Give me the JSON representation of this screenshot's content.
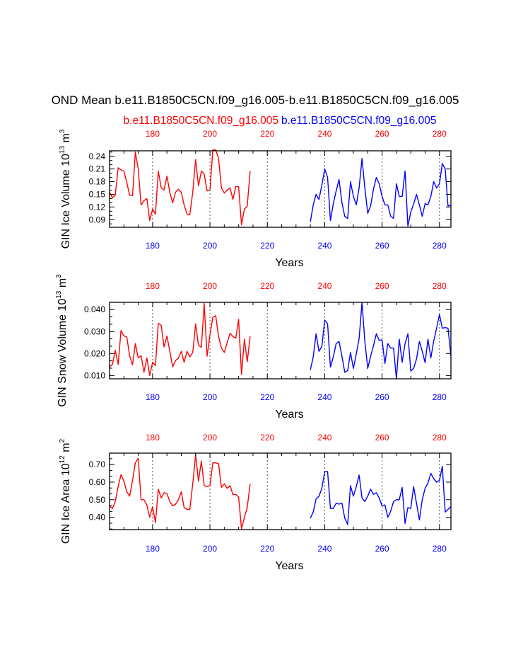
{
  "chart_data": {
    "type": "line",
    "title": "OND Mean b.e11.B1850C5CN.f09_g16.005-b.e11.B1850C5CN.f09_g16.005",
    "legend": [
      {
        "label": "b.e11.B1850C5CN.f09_g16.005",
        "color": "#ff0000"
      },
      {
        "label": "b.e11.B1850C5CN.f09_g16.005",
        "color": "#0000ff"
      }
    ],
    "colors": {
      "series_a": "#ff0000",
      "series_b": "#0000ff",
      "frame": "#000000",
      "refline": "#555555"
    },
    "xlim": [
      165,
      284
    ],
    "x_ticks": [
      180,
      200,
      220,
      240,
      260,
      280
    ],
    "x_tick_labels": [
      "180",
      "200",
      "220",
      "240",
      "260",
      "280"
    ],
    "x_tick_colors": [
      "#ff0000",
      "#ff0000",
      "#ff0000",
      "#ff0000",
      "#ff0000",
      "#ff0000"
    ],
    "x_tick_colors_bottom": [
      "#0000ff",
      "#0000ff",
      "#0000ff",
      "#0000ff",
      "#0000ff",
      "#0000ff"
    ],
    "reference_lines_x": [
      180,
      200,
      220,
      240,
      260,
      280
    ],
    "panels": [
      {
        "name": "ice-volume",
        "ylabel": "GIN Ice Volume 10",
        "ylabel_exp": "13",
        "ylabel_unit": " m",
        "ylabel_unit_exp": "3",
        "xlabel": "Years",
        "ylim": [
          0.072,
          0.253
        ],
        "y_ticks": [
          0.09,
          0.12,
          0.15,
          0.18,
          0.21,
          0.24
        ],
        "y_tick_labels": [
          "0.09",
          "0.12",
          "0.15",
          "0.18",
          "0.21",
          "0.24"
        ],
        "series": [
          {
            "name": "b.e11.B1850C5CN.f09_g16.005",
            "color": "#ff0000",
            "x_start": 165,
            "values": [
              0.155,
              0.142,
              0.148,
              0.213,
              0.208,
              0.205,
              0.178,
              0.148,
              0.147,
              0.25,
              0.21,
              0.125,
              0.135,
              0.14,
              0.088,
              0.115,
              0.103,
              0.205,
              0.165,
              0.16,
              0.193,
              0.155,
              0.13,
              0.155,
              0.162,
              0.155,
              0.125,
              0.103,
              0.102,
              0.155,
              0.232,
              0.17,
              0.205,
              0.198,
              0.158,
              0.16,
              0.255,
              0.255,
              0.235,
              0.165,
              0.153,
              0.16,
              0.165,
              0.138,
              0.168,
              0.168,
              0.078,
              0.115,
              0.122,
              0.205
            ]
          },
          {
            "name": "b.e11.B1850C5CN.f09_g16.005",
            "color": "#0000ff",
            "x_start": 235,
            "values": [
              0.085,
              0.125,
              0.15,
              0.138,
              0.172,
              0.21,
              0.19,
              0.088,
              0.128,
              0.158,
              0.185,
              0.13,
              0.098,
              0.093,
              0.18,
              0.145,
              0.125,
              0.165,
              0.235,
              0.165,
              0.105,
              0.123,
              0.162,
              0.19,
              0.175,
              0.145,
              0.125,
              0.125,
              0.098,
              0.093,
              0.175,
              0.145,
              0.145,
              0.205,
              0.075,
              0.108,
              0.127,
              0.15,
              0.125,
              0.098,
              0.128,
              0.125,
              0.145,
              0.18,
              0.165,
              0.175,
              0.223,
              0.21,
              0.122,
              0.125
            ]
          }
        ]
      },
      {
        "name": "snow-volume",
        "ylabel": "GIN Snow Volume 10",
        "ylabel_exp": "13",
        "ylabel_unit": " m",
        "ylabel_unit_exp": "3",
        "xlabel": "Years",
        "ylim": [
          0.0085,
          0.0433
        ],
        "y_ticks": [
          0.01,
          0.02,
          0.03,
          0.04
        ],
        "y_tick_labels": [
          "0.010",
          "0.020",
          "0.030",
          "0.040"
        ],
        "series": [
          {
            "name": "b.e11.B1850C5CN.f09_g16.005",
            "color": "#ff0000",
            "x_start": 165,
            "values": [
              0.014,
              0.015,
              0.0215,
              0.015,
              0.0305,
              0.028,
              0.0275,
              0.019,
              0.0148,
              0.0245,
              0.018,
              0.019,
              0.0115,
              0.018,
              0.01,
              0.016,
              0.0145,
              0.0338,
              0.0328,
              0.023,
              0.028,
              0.021,
              0.014,
              0.0168,
              0.0178,
              0.021,
              0.016,
              0.021,
              0.0185,
              0.0205,
              0.0335,
              0.0238,
              0.0228,
              0.0428,
              0.0188,
              0.0285,
              0.0365,
              0.0372,
              0.0278,
              0.0225,
              0.0205,
              0.025,
              0.0292,
              0.0278,
              0.027,
              0.0355,
              0.0105,
              0.0265,
              0.0162,
              0.0278
            ]
          },
          {
            "name": "b.e11.B1850C5CN.f09_g16.005",
            "color": "#0000ff",
            "x_start": 235,
            "values": [
              0.0125,
              0.0185,
              0.029,
              0.021,
              0.0232,
              0.0352,
              0.0335,
              0.0138,
              0.0185,
              0.0245,
              0.0255,
              0.0188,
              0.0115,
              0.0122,
              0.0205,
              0.0132,
              0.0198,
              0.0268,
              0.0432,
              0.0255,
              0.0132,
              0.0188,
              0.0235,
              0.029,
              0.026,
              0.0262,
              0.0155,
              0.0245,
              0.0225,
              0.0225,
              0.0085,
              0.0265,
              0.016,
              0.0245,
              0.029,
              0.012,
              0.0132,
              0.0175,
              0.0255,
              0.021,
              0.0158,
              0.0265,
              0.018,
              0.0255,
              0.0315,
              0.0378,
              0.0315,
              0.0318,
              0.0315,
              0.0188
            ]
          }
        ]
      },
      {
        "name": "ice-area",
        "ylabel": "GIN Ice Area 10",
        "ylabel_exp": "12",
        "ylabel_unit": " m",
        "ylabel_unit_exp": "2",
        "xlabel": "Years",
        "ylim": [
          0.33,
          0.765
        ],
        "y_ticks": [
          0.4,
          0.5,
          0.6,
          0.7
        ],
        "y_tick_labels": [
          "0.40",
          "0.50",
          "0.60",
          "0.70"
        ],
        "series": [
          {
            "name": "b.e11.B1850C5CN.f09_g16.005",
            "color": "#ff0000",
            "x_start": 165,
            "values": [
              0.465,
              0.45,
              0.49,
              0.575,
              0.643,
              0.605,
              0.545,
              0.52,
              0.61,
              0.71,
              0.735,
              0.5,
              0.5,
              0.47,
              0.4,
              0.46,
              0.37,
              0.56,
              0.51,
              0.54,
              0.535,
              0.49,
              0.465,
              0.475,
              0.5,
              0.545,
              0.455,
              0.445,
              0.445,
              0.59,
              0.755,
              0.605,
              0.72,
              0.58,
              0.575,
              0.58,
              0.71,
              0.71,
              0.705,
              0.57,
              0.59,
              0.565,
              0.58,
              0.53,
              0.53,
              0.515,
              0.335,
              0.4,
              0.455,
              0.59
            ]
          },
          {
            "name": "b.e11.B1850C5CN.f09_g16.005",
            "color": "#0000ff",
            "x_start": 235,
            "values": [
              0.395,
              0.43,
              0.505,
              0.52,
              0.565,
              0.66,
              0.66,
              0.45,
              0.45,
              0.48,
              0.475,
              0.48,
              0.395,
              0.36,
              0.58,
              0.52,
              0.575,
              0.64,
              0.51,
              0.49,
              0.52,
              0.56,
              0.53,
              0.54,
              0.51,
              0.465,
              0.47,
              0.4,
              0.435,
              0.49,
              0.5,
              0.5,
              0.57,
              0.365,
              0.455,
              0.45,
              0.575,
              0.48,
              0.385,
              0.5,
              0.565,
              0.595,
              0.65,
              0.62,
              0.6,
              0.61,
              0.69,
              0.43,
              0.445,
              0.46
            ]
          }
        ]
      }
    ]
  }
}
